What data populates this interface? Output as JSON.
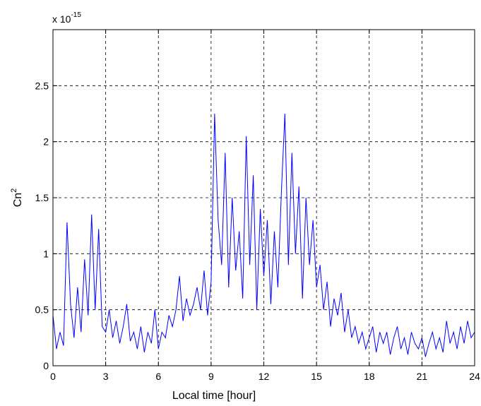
{
  "chart_data": {
    "type": "line",
    "xlabel": "Local time [hour]",
    "ylabel": "Cn",
    "ylabel_superscript": "2",
    "y_scale_label": "x 10",
    "y_scale_exponent": "-15",
    "xlim": [
      0,
      24
    ],
    "xticks": [
      0,
      3,
      6,
      9,
      12,
      15,
      18,
      21,
      24
    ],
    "ylim": [
      0,
      3
    ],
    "yticks": [
      0,
      0.5,
      1,
      1.5,
      2,
      2.5
    ],
    "grid": true,
    "series": [
      {
        "color": "#0000ff",
        "x": [
          0,
          0.2,
          0.4,
          0.6,
          0.8,
          1,
          1.2,
          1.4,
          1.6,
          1.8,
          2,
          2.2,
          2.4,
          2.6,
          2.8,
          3,
          3.2,
          3.4,
          3.6,
          3.8,
          4,
          4.2,
          4.4,
          4.6,
          4.8,
          5,
          5.2,
          5.4,
          5.6,
          5.8,
          6,
          6.2,
          6.4,
          6.6,
          6.8,
          7,
          7.2,
          7.4,
          7.6,
          7.8,
          8,
          8.2,
          8.4,
          8.6,
          8.8,
          9,
          9.2,
          9.4,
          9.6,
          9.8,
          10,
          10.2,
          10.4,
          10.6,
          10.8,
          11,
          11.2,
          11.4,
          11.6,
          11.8,
          12,
          12.2,
          12.4,
          12.6,
          12.8,
          13,
          13.2,
          13.4,
          13.6,
          13.8,
          14,
          14.2,
          14.4,
          14.6,
          14.8,
          15,
          15.2,
          15.4,
          15.6,
          15.8,
          16,
          16.2,
          16.4,
          16.6,
          16.8,
          17,
          17.2,
          17.4,
          17.6,
          17.8,
          18,
          18.2,
          18.4,
          18.6,
          18.8,
          19,
          19.2,
          19.4,
          19.6,
          19.8,
          20,
          20.2,
          20.4,
          20.6,
          20.8,
          21,
          21.2,
          21.4,
          21.6,
          21.8,
          22,
          22.2,
          22.4,
          22.6,
          22.8,
          23,
          23.2,
          23.4,
          23.6,
          23.8,
          24
        ],
        "values": [
          0.45,
          0.15,
          0.3,
          0.18,
          1.28,
          0.55,
          0.25,
          0.7,
          0.3,
          0.95,
          0.45,
          1.35,
          0.5,
          1.22,
          0.35,
          0.3,
          0.5,
          0.25,
          0.4,
          0.2,
          0.35,
          0.55,
          0.22,
          0.3,
          0.15,
          0.35,
          0.12,
          0.3,
          0.2,
          0.5,
          0.15,
          0.3,
          0.25,
          0.45,
          0.35,
          0.5,
          0.8,
          0.4,
          0.6,
          0.45,
          0.55,
          0.7,
          0.5,
          0.85,
          0.45,
          0.75,
          2.25,
          1.3,
          0.9,
          1.9,
          0.7,
          1.5,
          0.85,
          1.2,
          0.6,
          2.05,
          0.9,
          1.7,
          0.5,
          1.4,
          0.8,
          1.3,
          0.55,
          1.2,
          0.7,
          1.55,
          2.25,
          0.9,
          1.9,
          1,
          1.6,
          0.6,
          1.5,
          0.9,
          1.3,
          0.7,
          0.9,
          0.5,
          0.75,
          0.35,
          0.6,
          0.45,
          0.65,
          0.3,
          0.5,
          0.25,
          0.35,
          0.2,
          0.3,
          0.15,
          0.25,
          0.35,
          0.12,
          0.3,
          0.2,
          0.3,
          0.1,
          0.25,
          0.35,
          0.15,
          0.25,
          0.1,
          0.3,
          0.2,
          0.15,
          0.25,
          0.08,
          0.2,
          0.3,
          0.15,
          0.25,
          0.12,
          0.4,
          0.2,
          0.3,
          0.15,
          0.35,
          0.2,
          0.4,
          0.25,
          0.3
        ]
      }
    ]
  }
}
